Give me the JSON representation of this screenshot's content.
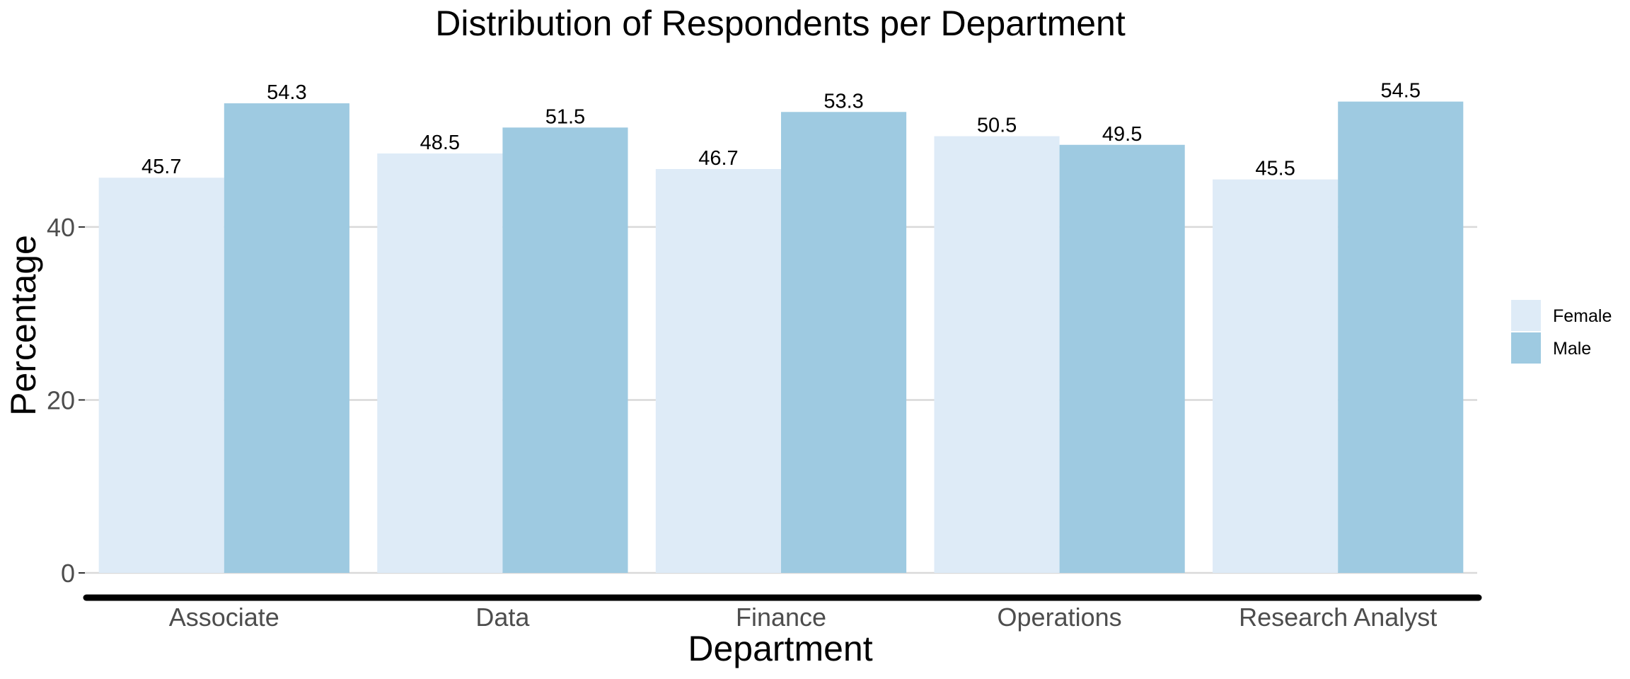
{
  "chart_data": {
    "type": "bar",
    "title": "Distribution of Respondents per Department",
    "xlabel": "Department",
    "ylabel": "Percentage",
    "categories": [
      "Associate",
      "Data",
      "Finance",
      "Operations",
      "Research Analyst"
    ],
    "series": [
      {
        "name": "Female",
        "color": "#deebf7",
        "values": [
          45.7,
          48.5,
          46.7,
          50.5,
          45.5
        ],
        "labels": [
          "45.7",
          "48.5",
          "46.7",
          "50.5",
          "45.5"
        ]
      },
      {
        "name": "Male",
        "color": "#9ecae1",
        "values": [
          54.3,
          51.5,
          53.3,
          49.5,
          54.5
        ],
        "labels": [
          "54.3",
          "51.5",
          "53.3",
          "49.5",
          "54.5"
        ]
      }
    ],
    "yticks": [
      0,
      20,
      40
    ],
    "ytick_labels": [
      "0",
      "20",
      "40"
    ],
    "ylim": [
      0,
      57.25
    ],
    "grid": true,
    "legend_position": "right"
  }
}
